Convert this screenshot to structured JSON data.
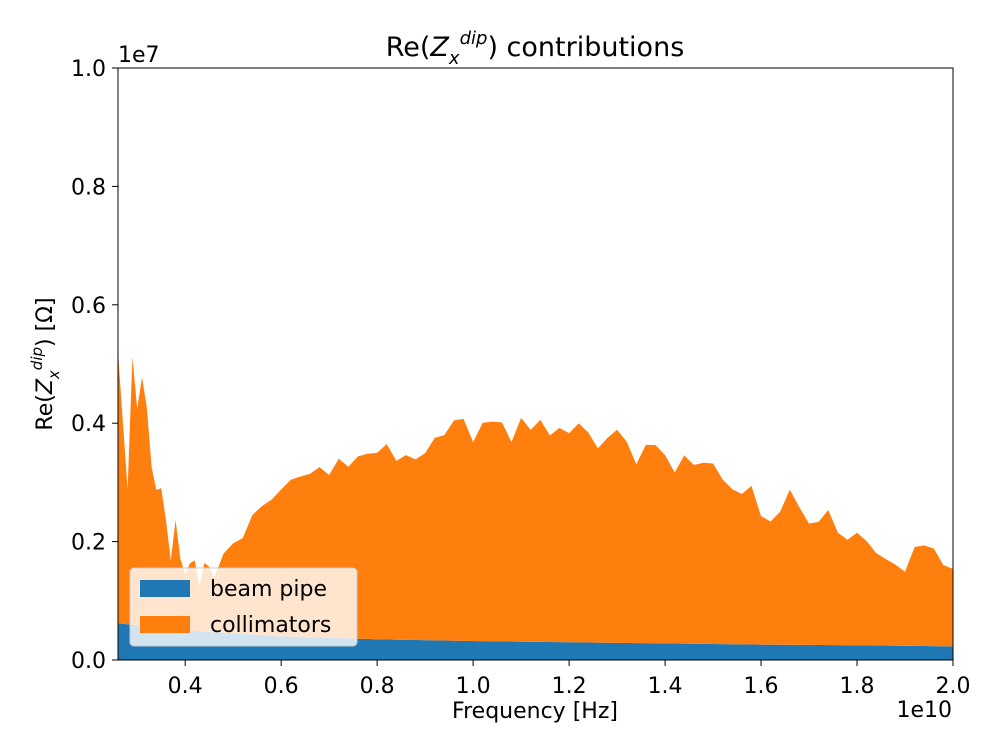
{
  "chart_data": {
    "type": "area",
    "stacked": true,
    "title": {
      "prefix": "Re(",
      "symbol": "Z",
      "sub": "x",
      "sup": "dip",
      "suffix": ") contributions"
    },
    "xlabel": "Frequency [Hz]",
    "ylabel": {
      "prefix": "Re(",
      "symbol": "Z",
      "sub": "x",
      "sup": "dip",
      "suffix": ") [Ω]"
    },
    "x_offset_label": "1e10",
    "y_offset_label": "1e7",
    "x_scale": 10000000000,
    "y_scale": 10000000,
    "xlim": [
      0.26,
      2.0
    ],
    "ylim": [
      0.0,
      1.0
    ],
    "x_ticks": [
      "0.4",
      "0.6",
      "0.8",
      "1.0",
      "1.2",
      "1.4",
      "1.6",
      "1.8",
      "2.0"
    ],
    "y_ticks": [
      "0.0",
      "0.2",
      "0.4",
      "0.6",
      "0.8",
      "1.0"
    ],
    "grid": false,
    "legend_position": "lower left",
    "legend": [
      "beam pipe",
      "collimators"
    ],
    "series": [
      {
        "name": "beam pipe",
        "color": "#1f77b4",
        "x": [
          0.26,
          0.4,
          0.6,
          0.8,
          1.0,
          1.2,
          1.4,
          1.6,
          1.8,
          2.0
        ],
        "values": [
          0.062,
          0.05,
          0.04,
          0.035,
          0.032,
          0.03,
          0.028,
          0.026,
          0.025,
          0.023
        ]
      },
      {
        "name": "collimators",
        "color": "#ff7f0e",
        "x": [
          0.26,
          0.28,
          0.29,
          0.3,
          0.31,
          0.32,
          0.33,
          0.34,
          0.35,
          0.36,
          0.37,
          0.38,
          0.39,
          0.4,
          0.41,
          0.42,
          0.43,
          0.44,
          0.45,
          0.46,
          0.47,
          0.48,
          0.5,
          0.52,
          0.54,
          0.56,
          0.58,
          0.6,
          0.62,
          0.64,
          0.66,
          0.68,
          0.7,
          0.72,
          0.74,
          0.76,
          0.78,
          0.8,
          0.82,
          0.84,
          0.86,
          0.88,
          0.9,
          0.92,
          0.94,
          0.96,
          0.98,
          1.0,
          1.02,
          1.04,
          1.06,
          1.08,
          1.1,
          1.12,
          1.14,
          1.16,
          1.18,
          1.2,
          1.22,
          1.24,
          1.26,
          1.28,
          1.3,
          1.32,
          1.34,
          1.36,
          1.38,
          1.4,
          1.42,
          1.44,
          1.46,
          1.48,
          1.5,
          1.52,
          1.54,
          1.56,
          1.58,
          1.6,
          1.62,
          1.64,
          1.66,
          1.68,
          1.7,
          1.72,
          1.74,
          1.76,
          1.78,
          1.8,
          1.82,
          1.84,
          1.86,
          1.88,
          1.9,
          1.92,
          1.94,
          1.96,
          1.98,
          2.0
        ],
        "values": [
          0.458,
          0.228,
          0.452,
          0.366,
          0.42,
          0.37,
          0.27,
          0.232,
          0.236,
          0.182,
          0.115,
          0.185,
          0.12,
          0.095,
          0.114,
          0.119,
          0.075,
          0.116,
          0.11,
          0.092,
          0.112,
          0.134,
          0.152,
          0.162,
          0.202,
          0.218,
          0.23,
          0.248,
          0.265,
          0.271,
          0.276,
          0.288,
          0.275,
          0.303,
          0.29,
          0.308,
          0.313,
          0.315,
          0.33,
          0.302,
          0.312,
          0.305,
          0.316,
          0.342,
          0.347,
          0.372,
          0.375,
          0.336,
          0.369,
          0.371,
          0.37,
          0.337,
          0.378,
          0.358,
          0.375,
          0.349,
          0.362,
          0.353,
          0.37,
          0.355,
          0.328,
          0.346,
          0.36,
          0.34,
          0.302,
          0.335,
          0.335,
          0.318,
          0.289,
          0.318,
          0.302,
          0.306,
          0.305,
          0.278,
          0.262,
          0.254,
          0.268,
          0.217,
          0.208,
          0.225,
          0.262,
          0.232,
          0.205,
          0.208,
          0.228,
          0.19,
          0.178,
          0.19,
          0.176,
          0.156,
          0.146,
          0.137,
          0.125,
          0.167,
          0.17,
          0.165,
          0.137,
          0.131
        ]
      }
    ]
  }
}
